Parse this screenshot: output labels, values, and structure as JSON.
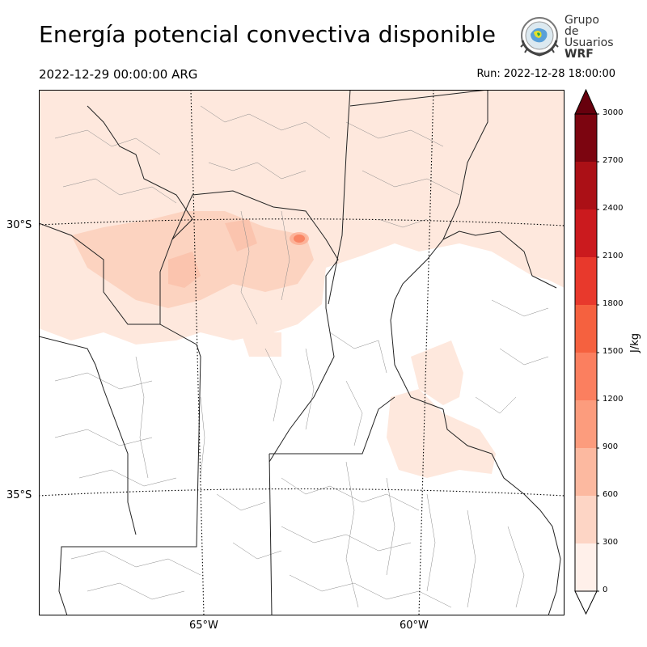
{
  "header": {
    "title": "Energía potencial convectiva disponible",
    "valid_time": "2022-12-29 00:00:00 ARG",
    "run_time": "Run: 2022-12-28 18:00:00"
  },
  "logo": {
    "line1": "Grupo de",
    "line2": "Usuarios",
    "line3": "WRF"
  },
  "map": {
    "lat_labels": [
      "30°S",
      "35°S"
    ],
    "lon_labels": [
      "65°W",
      "60°W"
    ]
  },
  "colorbar": {
    "unit": "J/kg",
    "ticks": [
      "0",
      "300",
      "600",
      "900",
      "1200",
      "1500",
      "1800",
      "2100",
      "2400",
      "2700",
      "3000"
    ],
    "colors": [
      "#fff0ea",
      "#fdd5c5",
      "#fcb9a0",
      "#fc9c7d",
      "#fb7f5f",
      "#f5613f",
      "#e8392c",
      "#cb1a1e",
      "#ab1016",
      "#7c0510"
    ],
    "extend": "both"
  },
  "colors": {
    "cape_light": "#fee4d8",
    "cape_mid": "#fcd0bb",
    "cape_peak": "#f5613f"
  }
}
